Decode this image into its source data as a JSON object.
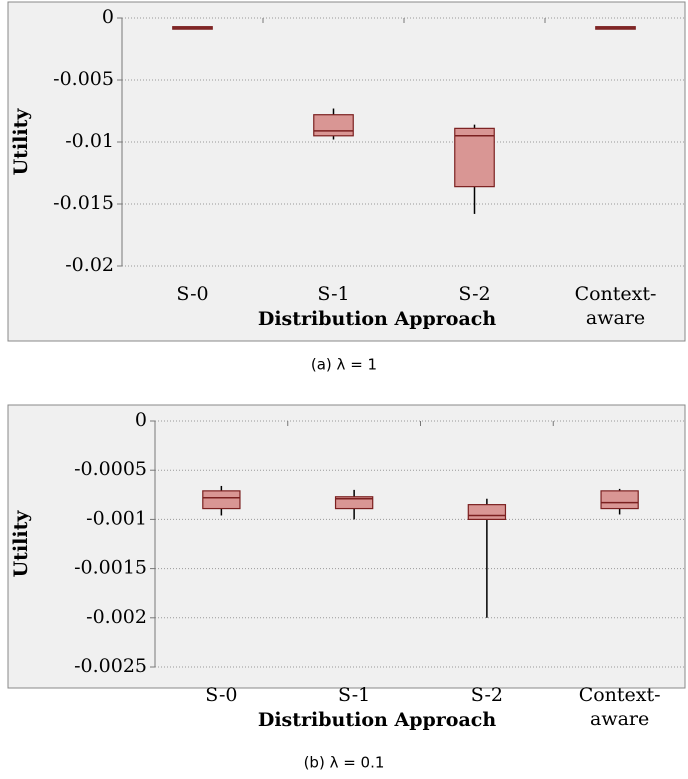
{
  "chart_data": [
    {
      "type": "box",
      "xlabel": "Distribution Approach",
      "ylabel": "Utility",
      "caption": "(a) λ = 1",
      "categories": [
        "S-0",
        "S-1",
        "S-2",
        "Context-aware"
      ],
      "boxes": [
        {
          "min": -0.0009,
          "q1": -0.0009,
          "median": -0.0008,
          "q3": -0.0007,
          "max": -0.0007
        },
        {
          "min": -0.0098,
          "q1": -0.0095,
          "median": -0.0091,
          "q3": -0.0078,
          "max": -0.0073
        },
        {
          "min": -0.0158,
          "q1": -0.0136,
          "median": -0.0095,
          "q3": -0.0089,
          "max": -0.0086
        },
        {
          "min": -0.0009,
          "q1": -0.0009,
          "median": -0.0008,
          "q3": -0.0007,
          "max": -0.0007
        }
      ],
      "color": "#d99694",
      "ylim": [
        -0.02,
        0
      ],
      "yticks": [
        0,
        -0.005,
        -0.01,
        -0.015,
        -0.02
      ],
      "grid": true
    },
    {
      "type": "box",
      "xlabel": "Distribution Approach",
      "ylabel": "Utility",
      "caption": "(b) λ = 0.1",
      "categories": [
        "S-0",
        "S-1",
        "S-2",
        "Context-aware"
      ],
      "boxes": [
        {
          "min": -0.00096,
          "q1": -0.00089,
          "median": -0.00078,
          "q3": -0.00071,
          "max": -0.00066
        },
        {
          "min": -0.001,
          "q1": -0.00089,
          "median": -0.00079,
          "q3": -0.00077,
          "max": -0.0007
        },
        {
          "min": -0.002,
          "q1": -0.001,
          "median": -0.00096,
          "q3": -0.00085,
          "max": -0.00079
        },
        {
          "min": -0.00095,
          "q1": -0.00089,
          "median": -0.00083,
          "q3": -0.00071,
          "max": -0.00069
        }
      ],
      "color": "#d99694",
      "ylim": [
        -0.0025,
        0
      ],
      "yticks": [
        0,
        -0.0005,
        -0.001,
        -0.0015,
        -0.002,
        -0.0025
      ],
      "grid": true
    }
  ]
}
